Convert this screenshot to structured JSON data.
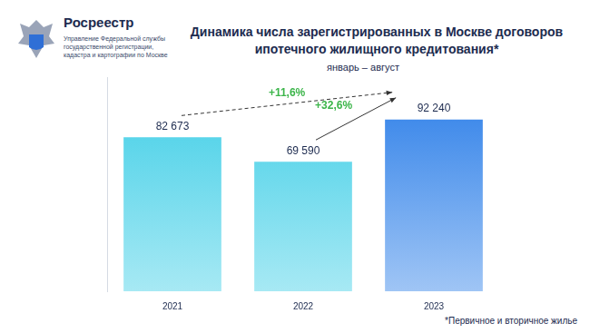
{
  "header": {
    "logo_title": "Росреестр",
    "logo_subtitle_lines": [
      "Управление Федеральной службы",
      "государственной регистрации,",
      "кадастра и картографии по Москве"
    ]
  },
  "chart_data": {
    "type": "bar",
    "title": "Динамика числа зарегистрированных в Москве договоров ипотечного жилищного кредитования*",
    "subtitle": "январь – август",
    "categories": [
      "2021",
      "2022",
      "2023"
    ],
    "values": [
      82673,
      69590,
      92240
    ],
    "value_labels": [
      "82 673",
      "69 590",
      "92 240"
    ],
    "data_labels": true,
    "colors": [
      "#3ccde6",
      "#3ccde6",
      "#2a7de8"
    ],
    "ylim": [
      0,
      115000
    ],
    "tick_labels": "x",
    "grid": false,
    "annotations": [
      {
        "text": "+11,6%",
        "from": "2021",
        "to": "2023"
      },
      {
        "text": "+32,6%",
        "from": "2022",
        "to": "2023"
      }
    ],
    "footnote": "*Первичное и вторичное жилье"
  }
}
